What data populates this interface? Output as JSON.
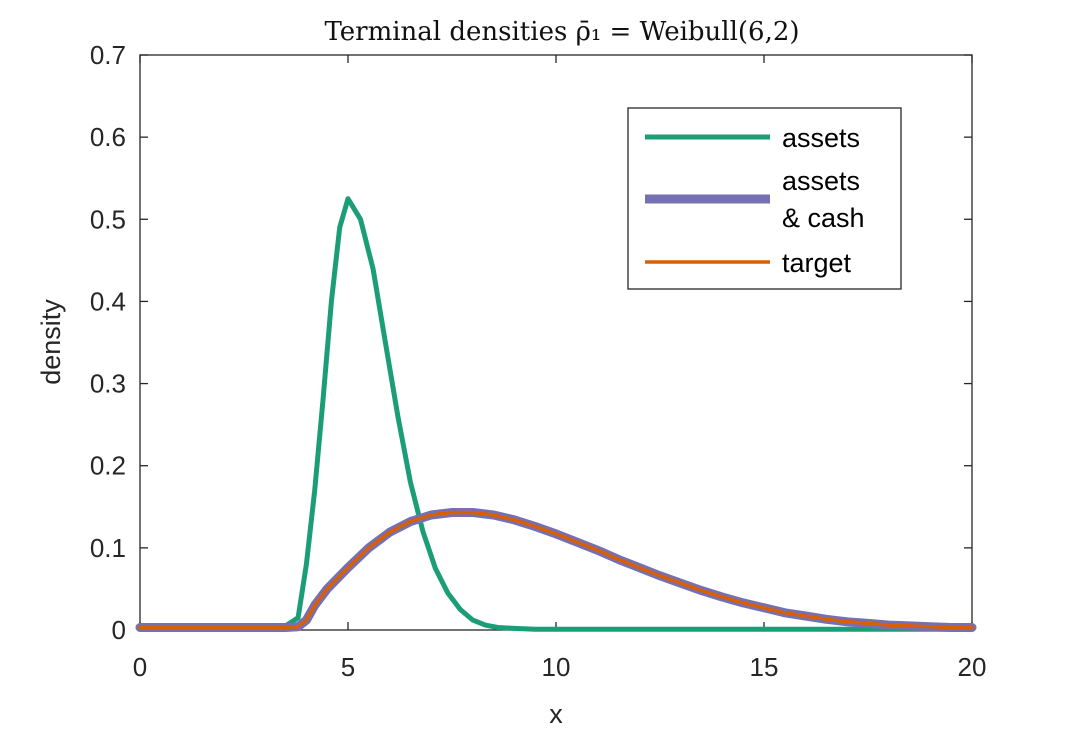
{
  "chart_data": {
    "type": "line",
    "title": "Terminal densities ρ̄₁ = Weibull(6,2)",
    "xlabel": "x",
    "ylabel": "density",
    "xlim": [
      0,
      20
    ],
    "ylim": [
      0,
      0.7
    ],
    "xticks": [
      "0",
      "5",
      "10",
      "15",
      "20"
    ],
    "yticks": [
      "0",
      "0.1",
      "0.2",
      "0.3",
      "0.4",
      "0.5",
      "0.6",
      "0.7"
    ],
    "grid": false,
    "legend_position": "top-right",
    "series": [
      {
        "name": "assets",
        "color": "#1b9e77",
        "x": [
          0,
          1,
          2,
          3,
          3.5,
          3.8,
          4.0,
          4.2,
          4.4,
          4.6,
          4.8,
          5.0,
          5.3,
          5.6,
          5.9,
          6.2,
          6.5,
          6.8,
          7.1,
          7.4,
          7.7,
          8.0,
          8.3,
          8.6,
          9.0,
          9.5,
          10,
          12,
          15,
          20
        ],
        "y": [
          0.003,
          0.003,
          0.003,
          0.003,
          0.005,
          0.015,
          0.08,
          0.17,
          0.28,
          0.4,
          0.49,
          0.525,
          0.5,
          0.44,
          0.35,
          0.26,
          0.18,
          0.12,
          0.075,
          0.045,
          0.025,
          0.012,
          0.006,
          0.003,
          0.002,
          0.001,
          0.001,
          0.001,
          0.001,
          0.001
        ]
      },
      {
        "name": "assets & cash",
        "color": "#7570b3",
        "x": [
          0,
          1,
          2,
          3,
          3.5,
          3.8,
          4.0,
          4.2,
          4.5,
          5,
          5.5,
          6,
          6.5,
          7,
          7.5,
          8,
          8.5,
          9,
          9.5,
          10,
          10.5,
          11,
          11.5,
          12,
          12.5,
          13,
          13.5,
          14,
          14.5,
          15,
          15.5,
          16,
          16.5,
          17,
          17.5,
          18,
          18.5,
          19,
          19.5,
          20
        ],
        "y": [
          0.003,
          0.003,
          0.003,
          0.003,
          0.003,
          0.004,
          0.012,
          0.03,
          0.05,
          0.076,
          0.1,
          0.119,
          0.132,
          0.14,
          0.143,
          0.143,
          0.14,
          0.134,
          0.126,
          0.117,
          0.107,
          0.097,
          0.086,
          0.076,
          0.066,
          0.057,
          0.048,
          0.04,
          0.033,
          0.027,
          0.021,
          0.017,
          0.013,
          0.01,
          0.008,
          0.006,
          0.005,
          0.004,
          0.003,
          0.003
        ]
      },
      {
        "name": "target",
        "color": "#d95f02",
        "x": [
          0,
          1,
          2,
          3,
          3.5,
          3.8,
          4.0,
          4.2,
          4.5,
          5,
          5.5,
          6,
          6.5,
          7,
          7.5,
          8,
          8.5,
          9,
          9.5,
          10,
          10.5,
          11,
          11.5,
          12,
          12.5,
          13,
          13.5,
          14,
          14.5,
          15,
          15.5,
          16,
          16.5,
          17,
          17.5,
          18,
          18.5,
          19,
          19.5,
          20
        ],
        "y": [
          0.003,
          0.003,
          0.003,
          0.003,
          0.003,
          0.004,
          0.012,
          0.03,
          0.05,
          0.076,
          0.1,
          0.119,
          0.132,
          0.14,
          0.143,
          0.143,
          0.14,
          0.134,
          0.126,
          0.117,
          0.107,
          0.097,
          0.086,
          0.076,
          0.066,
          0.057,
          0.048,
          0.04,
          0.033,
          0.027,
          0.021,
          0.017,
          0.013,
          0.01,
          0.008,
          0.006,
          0.005,
          0.004,
          0.003,
          0.003
        ]
      }
    ],
    "legend": {
      "assets": "assets",
      "assets_cash_line1": "assets",
      "assets_cash_line2": "& cash",
      "target": "target"
    }
  }
}
